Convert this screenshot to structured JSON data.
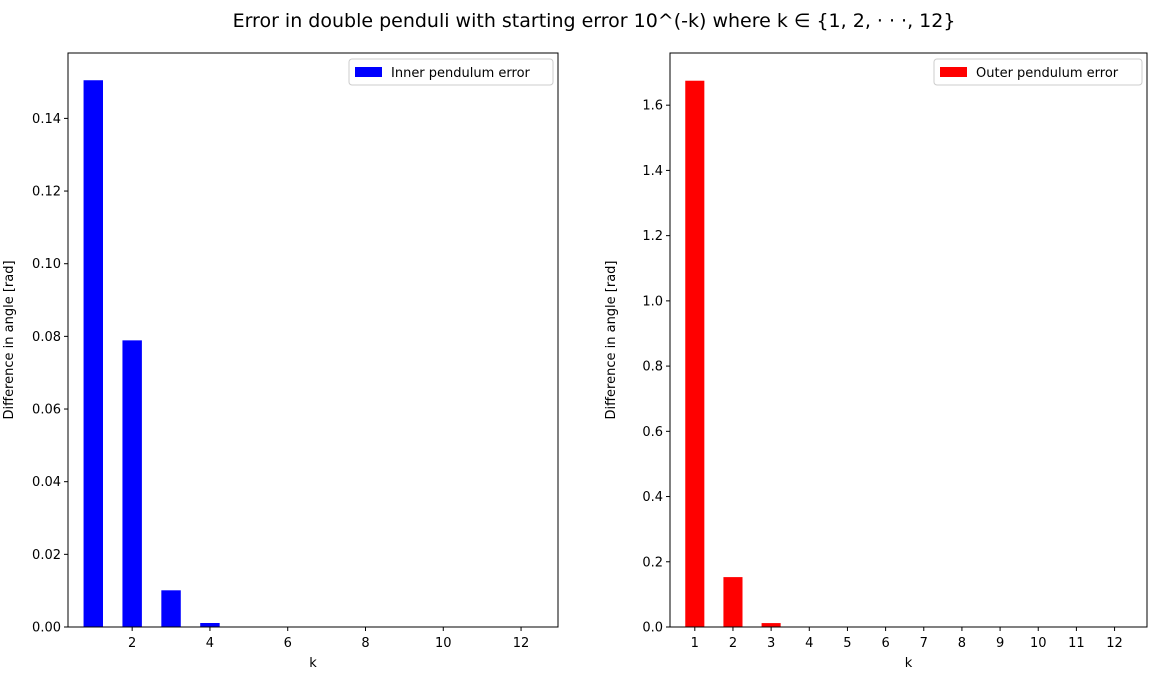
{
  "figure": {
    "title": "Error in double penduli with starting error 10^(-k) where k ∈ {1, 2, · · ·, 12}"
  },
  "chart_data": [
    {
      "type": "bar",
      "xlabel": "k",
      "ylabel": "Difference in angle [rad]",
      "x": [
        1,
        2,
        3,
        4,
        5,
        6,
        7,
        8,
        9,
        10,
        11,
        12
      ],
      "xticks": [
        "2",
        "4",
        "6",
        "8",
        "10",
        "12"
      ],
      "xlim": [
        0.35,
        12.95
      ],
      "ylim": [
        0,
        0.158
      ],
      "yticks": [
        "0.00",
        "0.02",
        "0.04",
        "0.06",
        "0.08",
        "0.10",
        "0.12",
        "0.14"
      ],
      "series": [
        {
          "name": "Inner pendulum error",
          "color": "#0000ff",
          "values": [
            0.1505,
            0.0789,
            0.0101,
            0.0011,
            0.0001,
            1e-05,
            1e-06,
            1e-07,
            1e-08,
            1e-09,
            1e-10,
            1e-11
          ]
        }
      ],
      "legend": "top-right",
      "grid": false
    },
    {
      "type": "bar",
      "xlabel": "k",
      "ylabel": "Difference in angle [rad]",
      "x": [
        1,
        2,
        3,
        4,
        5,
        6,
        7,
        8,
        9,
        10,
        11,
        12
      ],
      "xticks": [
        "1",
        "2",
        "3",
        "4",
        "5",
        "6",
        "7",
        "8",
        "9",
        "10",
        "11",
        "12"
      ],
      "xlim": [
        0.35,
        12.85
      ],
      "ylim": [
        0,
        1.76
      ],
      "yticks": [
        "0.0",
        "0.2",
        "0.4",
        "0.6",
        "0.8",
        "1.0",
        "1.2",
        "1.4",
        "1.6"
      ],
      "series": [
        {
          "name": "Outer pendulum error",
          "color": "#ff0000",
          "values": [
            1.675,
            0.153,
            0.012,
            0.001,
            0.0001,
            1e-05,
            1e-06,
            1e-07,
            1e-08,
            1e-09,
            1e-10,
            1e-11
          ]
        }
      ],
      "legend": "top-right",
      "grid": false
    }
  ]
}
